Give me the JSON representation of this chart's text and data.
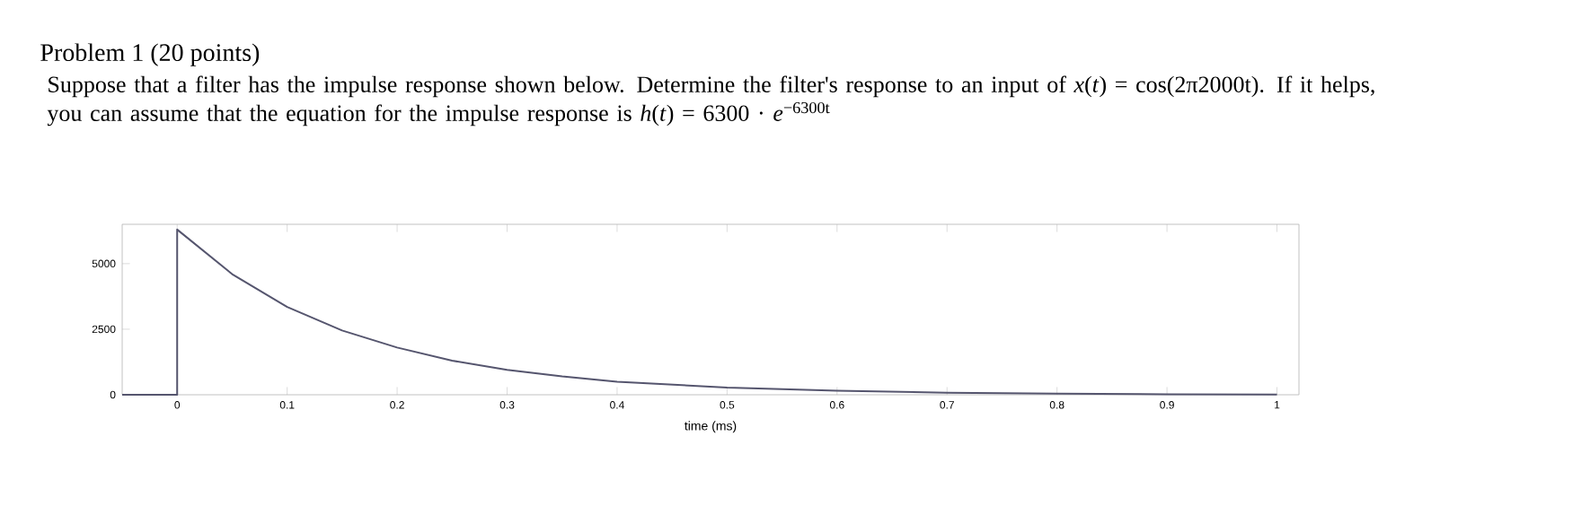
{
  "chart_data": {
    "type": "line",
    "title": "Problem 1 (20 points)",
    "subtitle": "Suppose that a filter has the impulse response shown below. Determine the filter's response to an input of *x*(*t*) = cos(2π2000t). If it helps, you can assume that the equation for the impulse response is *h*(*t*) = 6300 · *e*$^{−6300t}$",
    "xlabel": "time (ms)",
    "color": "#55556e",
    "x": [
      -0.05,
      0,
      0,
      0.05,
      0.1,
      0.15,
      0.2,
      0.25,
      0.3,
      0.35,
      0.4,
      0.5,
      0.6,
      0.7,
      0.8,
      0.9,
      1.0
    ],
    "values": [
      0,
      0,
      6300,
      4600,
      3350,
      2450,
      1800,
      1300,
      950,
      700,
      500,
      270,
      150,
      80,
      40,
      20,
      10
    ],
    "xlim": [
      -0.05,
      1.02
    ],
    "ylim": [
      0,
      6500
    ],
    "xticks": [
      0,
      0.1,
      0.2,
      0.3,
      0.4,
      0.5,
      0.6,
      0.7,
      0.8,
      0.9,
      1
    ],
    "yticks": [
      0,
      2500,
      5000
    ]
  }
}
